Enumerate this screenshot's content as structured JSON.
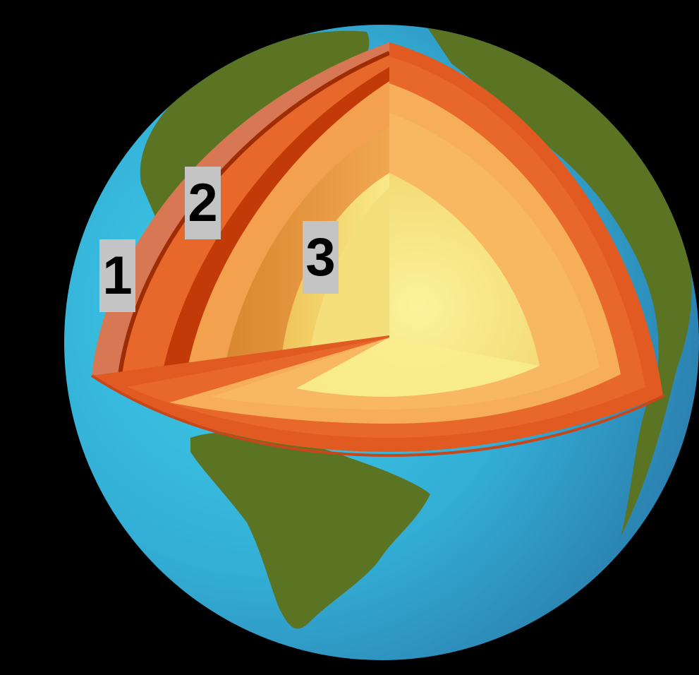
{
  "labels": {
    "layer_1": "1",
    "layer_2": "2",
    "layer_3": "3"
  },
  "colors": {
    "background": "#000000",
    "ocean_light": "#39c3e0",
    "ocean_dark": "#2f86b5",
    "land": "#5b7423",
    "crust": "#d77753",
    "mantle": "#e8672a",
    "mantle_dark": "#c23a08",
    "outer_core": "#f3a14f",
    "inner_core": "#f6e787",
    "label_box": "#c4c4c4"
  },
  "icons": [
    "earth-cutaway-illustration"
  ]
}
